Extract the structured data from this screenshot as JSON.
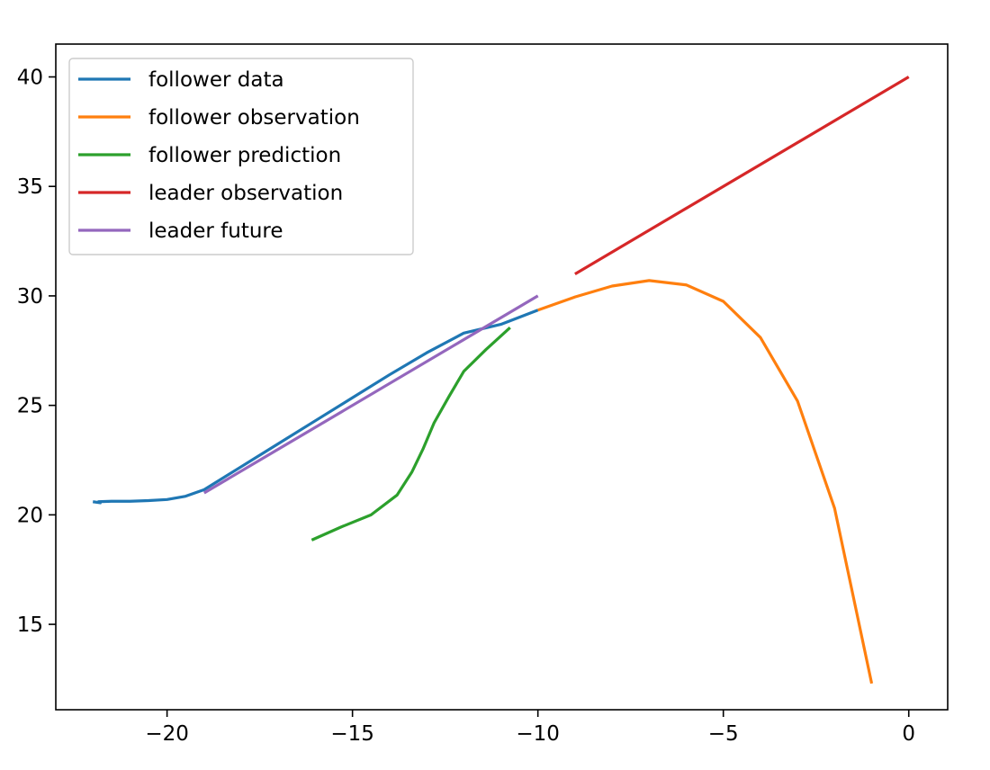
{
  "chart_data": {
    "type": "line",
    "title": "",
    "xlabel": "",
    "ylabel": "",
    "xlim": [
      -23,
      1.05
    ],
    "ylim": [
      11.1,
      41.5
    ],
    "grid": false,
    "legend_position": "top-left",
    "x_ticks": [
      {
        "value": -20,
        "label": "−20"
      },
      {
        "value": -15,
        "label": "−15"
      },
      {
        "value": -10,
        "label": "−10"
      },
      {
        "value": -5,
        "label": "−5"
      },
      {
        "value": 0,
        "label": "0"
      }
    ],
    "y_ticks": [
      {
        "value": 15,
        "label": "15"
      },
      {
        "value": 20,
        "label": "20"
      },
      {
        "value": 25,
        "label": "25"
      },
      {
        "value": 30,
        "label": "30"
      },
      {
        "value": 35,
        "label": "35"
      },
      {
        "value": 40,
        "label": "40"
      }
    ],
    "series": [
      {
        "name": "follower data",
        "color": "#1f77b4",
        "points": [
          [
            -22.0,
            20.6
          ],
          [
            -21.8,
            20.55
          ],
          [
            -21.85,
            20.6
          ],
          [
            -21.5,
            20.62
          ],
          [
            -21.0,
            20.62
          ],
          [
            -20.5,
            20.65
          ],
          [
            -20.0,
            20.7
          ],
          [
            -19.5,
            20.85
          ],
          [
            -19.0,
            21.15
          ],
          [
            -18.0,
            22.2
          ],
          [
            -17.0,
            23.25
          ],
          [
            -16.0,
            24.3
          ],
          [
            -15.0,
            25.35
          ],
          [
            -14.0,
            26.4
          ],
          [
            -13.0,
            27.4
          ],
          [
            -12.0,
            28.3
          ],
          [
            -11.0,
            28.7
          ],
          [
            -10.0,
            29.35
          ]
        ]
      },
      {
        "name": "follower observation",
        "color": "#ff7f0e",
        "points": [
          [
            -10.0,
            29.35
          ],
          [
            -9.0,
            29.95
          ],
          [
            -8.0,
            30.45
          ],
          [
            -7.0,
            30.7
          ],
          [
            -6.0,
            30.5
          ],
          [
            -5.0,
            29.75
          ],
          [
            -4.0,
            28.1
          ],
          [
            -3.0,
            25.2
          ],
          [
            -2.0,
            20.3
          ],
          [
            -1.0,
            12.3
          ]
        ]
      },
      {
        "name": "follower prediction",
        "color": "#2ca02c",
        "points": [
          [
            -16.1,
            18.85
          ],
          [
            -15.3,
            19.45
          ],
          [
            -14.5,
            20.0
          ],
          [
            -13.8,
            20.9
          ],
          [
            -13.4,
            21.95
          ],
          [
            -13.1,
            23.0
          ],
          [
            -12.8,
            24.2
          ],
          [
            -12.4,
            25.4
          ],
          [
            -12.0,
            26.55
          ],
          [
            -11.4,
            27.55
          ],
          [
            -10.75,
            28.55
          ]
        ]
      },
      {
        "name": "leader observation",
        "color": "#d62728",
        "points": [
          [
            -9.0,
            31.0
          ],
          [
            0.0,
            40.0
          ]
        ]
      },
      {
        "name": "leader future",
        "color": "#9467bd",
        "points": [
          [
            -19.0,
            21.0
          ],
          [
            -10.0,
            30.0
          ]
        ]
      }
    ]
  }
}
